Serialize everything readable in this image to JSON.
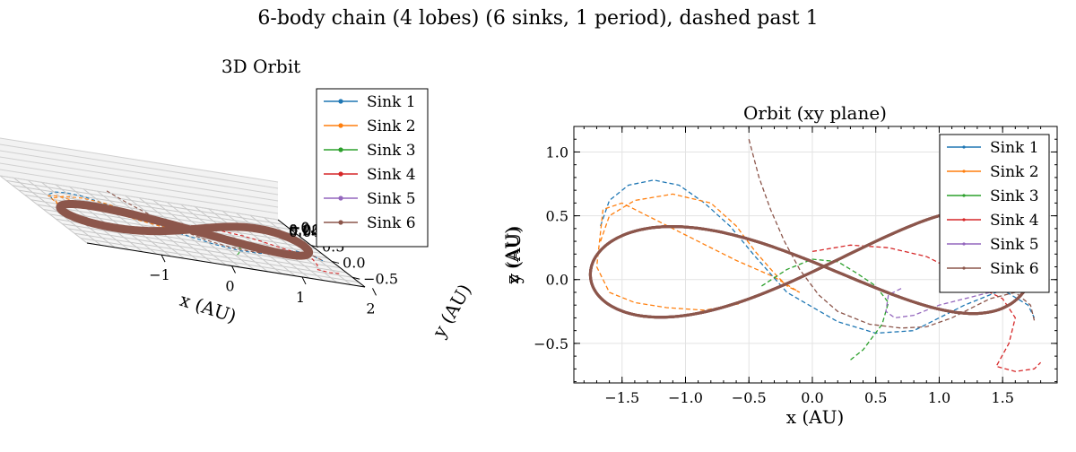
{
  "figure": {
    "suptitle": "6-body chain (4 lobes) (6 sinks, 1 period), dashed past 1"
  },
  "colors": {
    "sink1": "#1f77b4",
    "sink2": "#ff7f0e",
    "sink3": "#2ca02c",
    "sink4": "#d62728",
    "sink5": "#9467bd",
    "sink6": "#8c564b"
  },
  "chart_data": [
    {
      "type": "line",
      "title": "3D Orbit",
      "xlabel": "x (AU)",
      "ylabel": "y (AU)",
      "zlabel": "z (AU)",
      "x_ticks": [
        "−1",
        "0",
        "1",
        "2"
      ],
      "y_ticks": [
        "−0.5",
        "0.0",
        "0.5",
        "1.0"
      ],
      "z_ticks": [
        "−0.04",
        "−0.02",
        "0.00",
        "0.02",
        "0.04"
      ],
      "legend": [
        "Sink 1",
        "Sink 2",
        "Sink 3",
        "Sink 4",
        "Sink 5",
        "Sink 6"
      ],
      "legend_loc": "upper right"
    },
    {
      "type": "line",
      "title": "Orbit (xy plane)",
      "xlabel": "x (AU)",
      "ylabel": "y (AU)",
      "xlim": [
        -1.88,
        1.93
      ],
      "ylim": [
        -0.81,
        1.2
      ],
      "x_ticks": [
        -1.5,
        -1.0,
        -0.5,
        0.0,
        0.5,
        1.0,
        1.5
      ],
      "y_ticks": [
        -0.5,
        0.0,
        0.5,
        1.0
      ],
      "x_tick_labels": [
        "−1.5",
        "−1.0",
        "−0.5",
        "0.0",
        "0.5",
        "1.0",
        "1.5"
      ],
      "y_tick_labels": [
        "−0.5",
        "0.0",
        "0.5",
        "1.0"
      ],
      "grid": true,
      "legend": [
        "Sink 1",
        "Sink 2",
        "Sink 3",
        "Sink 4",
        "Sink 5",
        "Sink 6"
      ],
      "legend_loc": "upper right",
      "series": [
        {
          "name": "Sink 1",
          "style": "dashed",
          "x": [
            -1.67,
            -1.6,
            -1.45,
            -1.25,
            -1.05,
            -0.85,
            -0.65,
            -0.45,
            -0.2,
            0.2,
            0.5,
            0.8,
            1.2,
            1.5,
            1.7,
            1.75
          ],
          "y": [
            0.42,
            0.62,
            0.74,
            0.78,
            0.74,
            0.6,
            0.42,
            0.18,
            -0.1,
            -0.33,
            -0.42,
            -0.4,
            -0.2,
            -0.08,
            -0.2,
            -0.3
          ]
        },
        {
          "name": "Sink 2",
          "style": "dashed",
          "x": [
            -1.67,
            -1.6,
            -1.4,
            -1.1,
            -0.8,
            -0.6,
            -0.45,
            -0.3,
            -0.2,
            -0.1,
            -0.3,
            -0.6,
            -0.9,
            -1.2,
            -1.5,
            -1.65,
            -1.7,
            -1.6,
            -1.4,
            -1.15,
            -0.85,
            -0.58
          ],
          "y": [
            0.3,
            0.5,
            0.62,
            0.67,
            0.6,
            0.42,
            0.22,
            0.05,
            -0.05,
            -0.1,
            0.02,
            0.15,
            0.3,
            0.45,
            0.6,
            0.55,
            0.1,
            -0.1,
            -0.18,
            -0.22,
            -0.24,
            -0.19
          ]
        },
        {
          "name": "Sink 3",
          "style": "dashed",
          "x": [
            -0.4,
            -0.2,
            0.0,
            0.2,
            0.35,
            0.5,
            0.6,
            0.55,
            0.4,
            0.3
          ],
          "y": [
            -0.05,
            0.08,
            0.16,
            0.14,
            0.05,
            -0.05,
            -0.18,
            -0.35,
            -0.55,
            -0.63
          ]
        },
        {
          "name": "Sink 4",
          "style": "dashed",
          "x": [
            0.0,
            0.3,
            0.6,
            0.9,
            1.1,
            1.3,
            1.5,
            1.6,
            1.55,
            1.45,
            1.6,
            1.75,
            1.8
          ],
          "y": [
            0.22,
            0.27,
            0.25,
            0.18,
            0.08,
            -0.05,
            -0.15,
            -0.3,
            -0.5,
            -0.68,
            -0.72,
            -0.7,
            -0.65
          ]
        },
        {
          "name": "Sink 5",
          "style": "dashed",
          "x": [
            0.7,
            0.6,
            0.58,
            0.65,
            0.8,
            1.0,
            1.2,
            1.4
          ],
          "y": [
            -0.07,
            -0.12,
            -0.25,
            -0.3,
            -0.28,
            -0.2,
            -0.15,
            -0.1
          ]
        },
        {
          "name": "Sink 6",
          "style": "dashed",
          "x": [
            -0.5,
            -0.42,
            -0.33,
            -0.22,
            -0.1,
            0.05,
            0.2,
            0.45,
            0.7,
            0.9,
            1.1,
            1.4,
            1.6,
            1.72,
            1.75
          ],
          "y": [
            1.1,
            0.8,
            0.55,
            0.3,
            0.08,
            -0.12,
            -0.25,
            -0.35,
            -0.38,
            -0.37,
            -0.3,
            -0.15,
            -0.1,
            -0.2,
            -0.32
          ]
        }
      ]
    }
  ]
}
